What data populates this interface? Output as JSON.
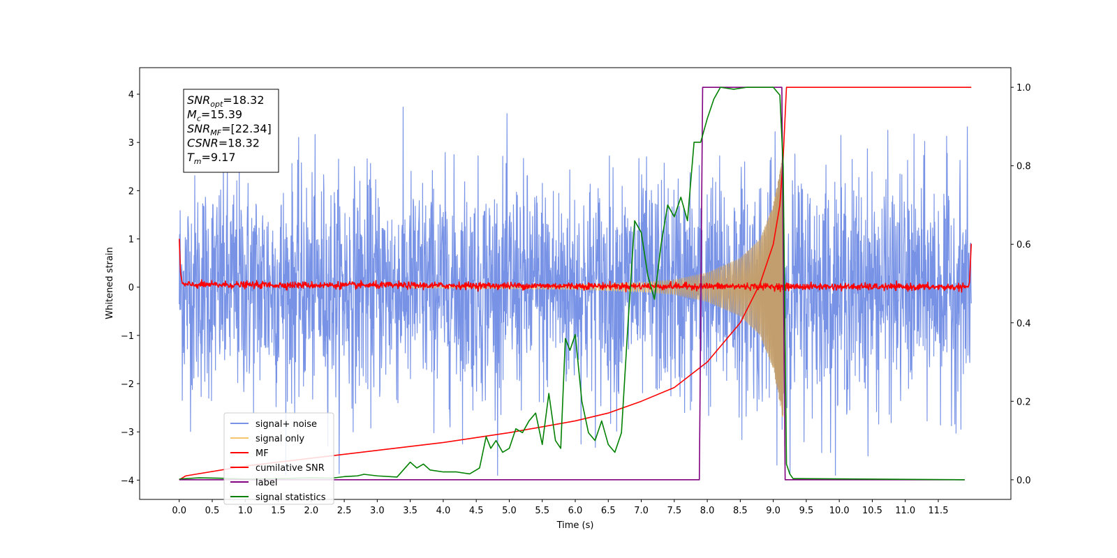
{
  "chart_data": {
    "type": "line",
    "title": "",
    "xlabel": "Time (s)",
    "ylabel": "Whitened strain",
    "xlim": [
      -0.6,
      12.6
    ],
    "ylim": [
      -4.4,
      4.55
    ],
    "y2lim": [
      -0.05,
      1.05
    ],
    "x_ticks": [
      0.0,
      0.5,
      1.0,
      1.5,
      2.0,
      2.5,
      3.0,
      3.5,
      4.0,
      4.5,
      5.0,
      5.5,
      6.0,
      6.5,
      7.0,
      7.5,
      8.0,
      8.5,
      9.0,
      9.5,
      10.0,
      10.5,
      11.0,
      11.5
    ],
    "x_tick_labels": [
      "0.0",
      "0.5",
      "1.0",
      "1.5",
      "2.0",
      "2.5",
      "3.0",
      "3.5",
      "4.0",
      "4.5",
      "5.0",
      "5.5",
      "6.0",
      "6.5",
      "7.0",
      "7.5",
      "8.0",
      "8.5",
      "9.0",
      "9.5",
      "10.0",
      "10.5",
      "11.0",
      "11.5"
    ],
    "y_ticks": [
      -4,
      -3,
      -2,
      -1,
      0,
      1,
      2,
      3,
      4
    ],
    "y_tick_labels": [
      "−4",
      "−3",
      "−2",
      "−1",
      "0",
      "1",
      "2",
      "3",
      "4"
    ],
    "y2_ticks": [
      0.0,
      0.2,
      0.4,
      0.6,
      0.8,
      1.0
    ],
    "y2_tick_labels": [
      "0.0",
      "0.2",
      "0.4",
      "0.6",
      "0.8",
      "1.0"
    ],
    "grid": false,
    "legend_position": "lower-left",
    "annotation": [
      {
        "base": "SNR",
        "sub": "opt",
        "value": "=18.32"
      },
      {
        "base": "M",
        "sub": "c",
        "value": "=15.39"
      },
      {
        "base": "SNR",
        "sub": "MF",
        "value": "=[22.34]"
      },
      {
        "base": "CSNR",
        "sub": "",
        "value": "=18.32"
      },
      {
        "base": "T",
        "sub": "m",
        "value": "=9.17"
      }
    ],
    "series": [
      {
        "name": "signal+ noise",
        "color": "#7893e6",
        "axis": "left",
        "kind": "noise",
        "x_range": [
          0.0,
          12.0
        ],
        "envelope": [
          {
            "x": 0.0,
            "y": 1.2
          },
          {
            "x": 2.0,
            "y": 1.2
          },
          {
            "x": 7.0,
            "y": 1.2
          },
          {
            "x": 9.17,
            "y": 1.3
          },
          {
            "x": 12.0,
            "y": 1.2
          }
        ]
      },
      {
        "name": "signal only",
        "color": "#f5c46b",
        "axis": "left",
        "kind": "chirp",
        "amplitude_points": [
          {
            "x": 4.0,
            "y": 0.02
          },
          {
            "x": 6.0,
            "y": 0.05
          },
          {
            "x": 7.0,
            "y": 0.1
          },
          {
            "x": 7.5,
            "y": 0.15
          },
          {
            "x": 8.0,
            "y": 0.3
          },
          {
            "x": 8.5,
            "y": 0.6
          },
          {
            "x": 8.8,
            "y": 1.0
          },
          {
            "x": 9.0,
            "y": 1.7
          },
          {
            "x": 9.1,
            "y": 2.4
          },
          {
            "x": 9.15,
            "y": 2.8
          },
          {
            "x": 9.17,
            "y": 0.0
          }
        ]
      },
      {
        "name": "MF",
        "color": "#ff0000",
        "axis": "left",
        "kind": "flat",
        "points": [
          {
            "x": 0.0,
            "y": 1.0
          },
          {
            "x": 0.02,
            "y": 0.3
          },
          {
            "x": 0.05,
            "y": 0.05
          },
          {
            "x": 11.97,
            "y": 0.0
          },
          {
            "x": 12.0,
            "y": 0.9
          }
        ]
      },
      {
        "name": "cumilative SNR",
        "color": "#ff0000",
        "axis": "right",
        "points": [
          {
            "x": 0.0,
            "y": 0.0
          },
          {
            "x": 0.1,
            "y": 0.01
          },
          {
            "x": 1.0,
            "y": 0.035
          },
          {
            "x": 2.0,
            "y": 0.055
          },
          {
            "x": 3.0,
            "y": 0.075
          },
          {
            "x": 4.0,
            "y": 0.095
          },
          {
            "x": 5.0,
            "y": 0.12
          },
          {
            "x": 6.0,
            "y": 0.15
          },
          {
            "x": 6.5,
            "y": 0.17
          },
          {
            "x": 7.0,
            "y": 0.2
          },
          {
            "x": 7.5,
            "y": 0.235
          },
          {
            "x": 8.0,
            "y": 0.3
          },
          {
            "x": 8.5,
            "y": 0.4
          },
          {
            "x": 8.8,
            "y": 0.5
          },
          {
            "x": 9.0,
            "y": 0.6
          },
          {
            "x": 9.1,
            "y": 0.7
          },
          {
            "x": 9.15,
            "y": 0.82
          },
          {
            "x": 9.2,
            "y": 1.0
          },
          {
            "x": 12.0,
            "y": 1.0
          }
        ]
      },
      {
        "name": "label",
        "color": "#800080",
        "axis": "right",
        "points": [
          {
            "x": 0.0,
            "y": 0.0
          },
          {
            "x": 7.88,
            "y": 0.0
          },
          {
            "x": 7.93,
            "y": 1.0
          },
          {
            "x": 9.13,
            "y": 1.0
          },
          {
            "x": 9.18,
            "y": 0.0
          },
          {
            "x": 11.9,
            "y": 0.0
          }
        ]
      },
      {
        "name": "signal statistics",
        "color": "#008000",
        "axis": "right",
        "points": [
          {
            "x": 0.0,
            "y": 0.002
          },
          {
            "x": 0.3,
            "y": 0.005
          },
          {
            "x": 0.6,
            "y": 0.004
          },
          {
            "x": 1.0,
            "y": 0.002
          },
          {
            "x": 1.5,
            "y": 0.003
          },
          {
            "x": 2.0,
            "y": 0.005
          },
          {
            "x": 2.3,
            "y": 0.004
          },
          {
            "x": 2.5,
            "y": 0.008
          },
          {
            "x": 2.7,
            "y": 0.01
          },
          {
            "x": 2.8,
            "y": 0.014
          },
          {
            "x": 3.0,
            "y": 0.01
          },
          {
            "x": 3.3,
            "y": 0.007
          },
          {
            "x": 3.5,
            "y": 0.045
          },
          {
            "x": 3.6,
            "y": 0.03
          },
          {
            "x": 3.7,
            "y": 0.04
          },
          {
            "x": 3.8,
            "y": 0.025
          },
          {
            "x": 4.0,
            "y": 0.02
          },
          {
            "x": 4.2,
            "y": 0.02
          },
          {
            "x": 4.4,
            "y": 0.015
          },
          {
            "x": 4.55,
            "y": 0.03
          },
          {
            "x": 4.65,
            "y": 0.11
          },
          {
            "x": 4.72,
            "y": 0.08
          },
          {
            "x": 4.8,
            "y": 0.1
          },
          {
            "x": 4.9,
            "y": 0.07
          },
          {
            "x": 5.0,
            "y": 0.08
          },
          {
            "x": 5.1,
            "y": 0.13
          },
          {
            "x": 5.2,
            "y": 0.12
          },
          {
            "x": 5.3,
            "y": 0.15
          },
          {
            "x": 5.4,
            "y": 0.17
          },
          {
            "x": 5.5,
            "y": 0.09
          },
          {
            "x": 5.6,
            "y": 0.22
          },
          {
            "x": 5.7,
            "y": 0.1
          },
          {
            "x": 5.78,
            "y": 0.08
          },
          {
            "x": 5.85,
            "y": 0.36
          },
          {
            "x": 5.92,
            "y": 0.33
          },
          {
            "x": 6.0,
            "y": 0.37
          },
          {
            "x": 6.1,
            "y": 0.2
          },
          {
            "x": 6.2,
            "y": 0.12
          },
          {
            "x": 6.3,
            "y": 0.1
          },
          {
            "x": 6.4,
            "y": 0.15
          },
          {
            "x": 6.5,
            "y": 0.09
          },
          {
            "x": 6.6,
            "y": 0.07
          },
          {
            "x": 6.7,
            "y": 0.12
          },
          {
            "x": 6.8,
            "y": 0.4
          },
          {
            "x": 6.9,
            "y": 0.66
          },
          {
            "x": 7.0,
            "y": 0.63
          },
          {
            "x": 7.1,
            "y": 0.52
          },
          {
            "x": 7.2,
            "y": 0.46
          },
          {
            "x": 7.3,
            "y": 0.6
          },
          {
            "x": 7.4,
            "y": 0.7
          },
          {
            "x": 7.5,
            "y": 0.67
          },
          {
            "x": 7.6,
            "y": 0.72
          },
          {
            "x": 7.7,
            "y": 0.66
          },
          {
            "x": 7.8,
            "y": 0.86
          },
          {
            "x": 7.9,
            "y": 0.86
          },
          {
            "x": 8.0,
            "y": 0.92
          },
          {
            "x": 8.1,
            "y": 0.97
          },
          {
            "x": 8.2,
            "y": 1.0
          },
          {
            "x": 8.4,
            "y": 0.995
          },
          {
            "x": 8.6,
            "y": 1.0
          },
          {
            "x": 8.8,
            "y": 1.0
          },
          {
            "x": 9.0,
            "y": 1.0
          },
          {
            "x": 9.1,
            "y": 0.98
          },
          {
            "x": 9.15,
            "y": 0.8
          },
          {
            "x": 9.2,
            "y": 0.04
          },
          {
            "x": 9.25,
            "y": 0.015
          },
          {
            "x": 9.3,
            "y": 0.003
          },
          {
            "x": 11.9,
            "y": 0.0
          }
        ]
      }
    ]
  }
}
